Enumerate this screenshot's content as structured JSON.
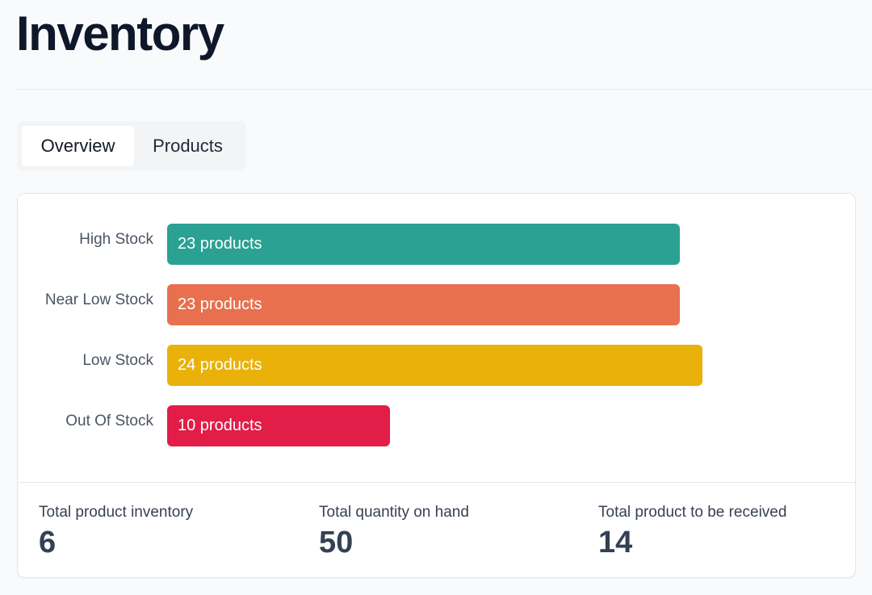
{
  "page": {
    "title": "Inventory"
  },
  "tabs": [
    {
      "label": "Overview",
      "active": true
    },
    {
      "label": "Products",
      "active": false
    }
  ],
  "chart_data": {
    "type": "bar",
    "orientation": "horizontal",
    "categories": [
      "High Stock",
      "Near Low Stock",
      "Low Stock",
      "Out Of Stock"
    ],
    "values": [
      23,
      23,
      24,
      10
    ],
    "value_labels": [
      "23 products",
      "23 products",
      "24 products",
      "10 products"
    ],
    "colors": [
      "#2aa193",
      "#e8704e",
      "#e9b10a",
      "#e11d48"
    ],
    "xlim": [
      0,
      25.5
    ]
  },
  "stats": [
    {
      "label": "Total product inventory",
      "value": "6"
    },
    {
      "label": "Total quantity on hand",
      "value": "50"
    },
    {
      "label": "Total product to be received",
      "value": "14"
    }
  ]
}
